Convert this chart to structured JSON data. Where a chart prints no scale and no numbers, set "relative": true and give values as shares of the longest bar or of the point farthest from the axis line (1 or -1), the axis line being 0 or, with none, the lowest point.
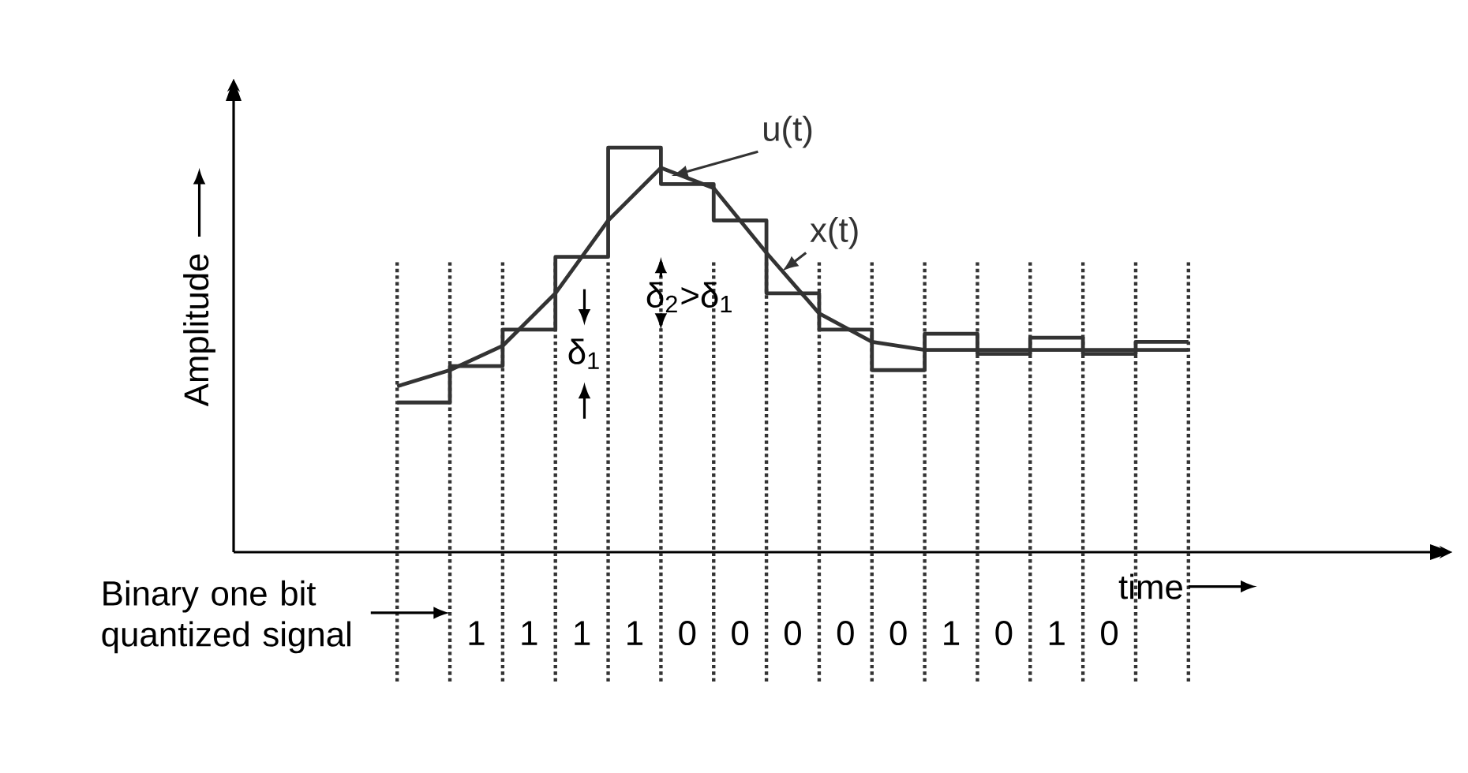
{
  "chart_data": {
    "type": "line",
    "relative": true,
    "xlabel": "time",
    "ylabel": "Amplitude",
    "grid": "x",
    "categories": [
      null,
      null,
      null,
      null,
      null,
      null,
      null,
      null,
      null,
      null,
      null,
      null,
      null,
      null,
      null,
      null
    ],
    "series": [
      {
        "name": "u(t)",
        "type": "step",
        "color": "#333333",
        "values": [
          0.37,
          0.46,
          0.55,
          0.73,
          1,
          0.91,
          0.82,
          0.64,
          0.55,
          0.45,
          0.54,
          0.49,
          0.53,
          0.49,
          0.52,
          0.52
        ]
      },
      {
        "name": "x(t)",
        "type": "line",
        "color": "#333333",
        "values": [
          0.41,
          0.45,
          0.51,
          0.64,
          0.82,
          0.95,
          0.9,
          0.74,
          0.59,
          0.52,
          0.5,
          0.5,
          0.5,
          0.5,
          0.5,
          0.5
        ]
      }
    ],
    "annotations": [
      "δ$_{2}$>δ$_{1}$",
      "δ$_{1}$",
      "Binary one bit quantized signal",
      "1",
      "1",
      "1",
      "1",
      "0",
      "0",
      "0",
      "0",
      "0",
      "1",
      "0",
      "1",
      "0"
    ]
  }
}
